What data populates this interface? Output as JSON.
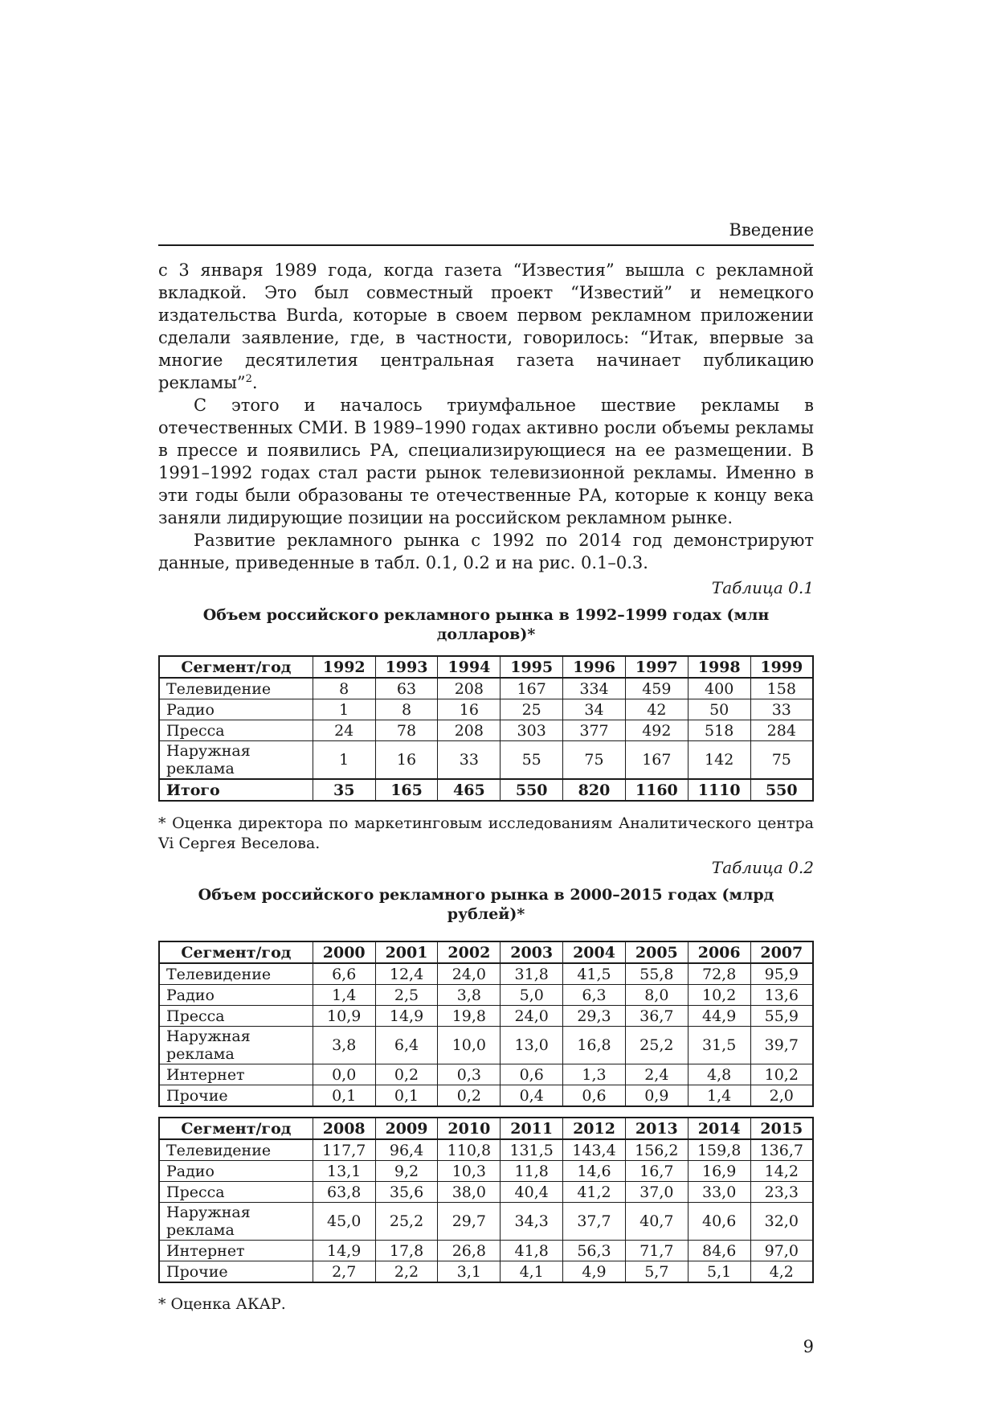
{
  "page": {
    "running_head": "Введение",
    "page_number": "9"
  },
  "paragraphs": {
    "p1_main": "с 3 января 1989 года, когда газета “Известия” вышла с рекламной вкладкой. Это был совместный проект “Известий” и немецкого издательства Burda, которые в своем первом рекламном приложении сделали заявление, где, в частности, говорилось: “Итак, впервые за многие десятилетия центральная газета начинает публикацию рекламы”",
    "p1_footnote_marker": "2",
    "p1_tail": ".",
    "p2": "С этого и началось триумфальное шествие рекламы в отечественных СМИ. В 1989–1990 годах активно росли объемы рекламы в прессе и появились РА, специализирующиеся на ее размещении. В 1991–1992 годах стал расти рынок телевизионной рекламы. Именно в эти годы были образованы те отечественные РА, которые к концу века заняли лидирующие позиции на российском рекламном рынке.",
    "p3": "Развитие рекламного рынка с 1992 по 2014 год демонстрируют данные, приведенные в табл. 0.1, 0.2 и на рис. 0.1–0.3."
  },
  "table1": {
    "caption": "Таблица 0.1",
    "title": "Объем российского рекламного рынка в 1992–1999 годах (млн долларов)*",
    "columns": [
      "Сегмент/год",
      "1992",
      "1993",
      "1994",
      "1995",
      "1996",
      "1997",
      "1998",
      "1999"
    ],
    "rows": [
      {
        "label": "Телевидение",
        "values": [
          "8",
          "63",
          "208",
          "167",
          "334",
          "459",
          "400",
          "158"
        ]
      },
      {
        "label": "Радио",
        "values": [
          "1",
          "8",
          "16",
          "25",
          "34",
          "42",
          "50",
          "33"
        ]
      },
      {
        "label": "Пресса",
        "values": [
          "24",
          "78",
          "208",
          "303",
          "377",
          "492",
          "518",
          "284"
        ]
      },
      {
        "label": "Наружная реклама",
        "values": [
          "1",
          "16",
          "33",
          "55",
          "75",
          "167",
          "142",
          "75"
        ]
      },
      {
        "label": "Итого",
        "values": [
          "35",
          "165",
          "465",
          "550",
          "820",
          "1160",
          "1110",
          "550"
        ],
        "bold": true
      }
    ],
    "footnote": "* Оценка директора по маркетинговым исследованиям Аналитического центра Vi Сергея Веселова."
  },
  "table2": {
    "caption": "Таблица 0.2",
    "title": "Объем российского рекламного рынка в 2000–2015 годах (млрд рублей)*",
    "part1": {
      "columns": [
        "Сегмент/год",
        "2000",
        "2001",
        "2002",
        "2003",
        "2004",
        "2005",
        "2006",
        "2007"
      ],
      "rows": [
        {
          "label": "Телевидение",
          "values": [
            "6,6",
            "12,4",
            "24,0",
            "31,8",
            "41,5",
            "55,8",
            "72,8",
            "95,9"
          ]
        },
        {
          "label": "Радио",
          "values": [
            "1,4",
            "2,5",
            "3,8",
            "5,0",
            "6,3",
            "8,0",
            "10,2",
            "13,6"
          ]
        },
        {
          "label": "Пресса",
          "values": [
            "10,9",
            "14,9",
            "19,8",
            "24,0",
            "29,3",
            "36,7",
            "44,9",
            "55,9"
          ]
        },
        {
          "label": "Наружная реклама",
          "values": [
            "3,8",
            "6,4",
            "10,0",
            "13,0",
            "16,8",
            "25,2",
            "31,5",
            "39,7"
          ]
        },
        {
          "label": "Интернет",
          "values": [
            "0,0",
            "0,2",
            "0,3",
            "0,6",
            "1,3",
            "2,4",
            "4,8",
            "10,2"
          ]
        },
        {
          "label": "Прочие",
          "values": [
            "0,1",
            "0,1",
            "0,2",
            "0,4",
            "0,6",
            "0,9",
            "1,4",
            "2,0"
          ]
        }
      ]
    },
    "part2": {
      "columns": [
        "Сегмент/год",
        "2008",
        "2009",
        "2010",
        "2011",
        "2012",
        "2013",
        "2014",
        "2015"
      ],
      "rows": [
        {
          "label": "Телевидение",
          "values": [
            "117,7",
            "96,4",
            "110,8",
            "131,5",
            "143,4",
            "156,2",
            "159,8",
            "136,7"
          ]
        },
        {
          "label": "Радио",
          "values": [
            "13,1",
            "9,2",
            "10,3",
            "11,8",
            "14,6",
            "16,7",
            "16,9",
            "14,2"
          ]
        },
        {
          "label": "Пресса",
          "values": [
            "63,8",
            "35,6",
            "38,0",
            "40,4",
            "41,2",
            "37,0",
            "33,0",
            "23,3"
          ]
        },
        {
          "label": "Наружная реклама",
          "values": [
            "45,0",
            "25,2",
            "29,7",
            "34,3",
            "37,7",
            "40,7",
            "40,6",
            "32,0"
          ]
        },
        {
          "label": "Интернет",
          "values": [
            "14,9",
            "17,8",
            "26,8",
            "41,8",
            "56,3",
            "71,7",
            "84,6",
            "97,0"
          ]
        },
        {
          "label": "Прочие",
          "values": [
            "2,7",
            "2,2",
            "3,1",
            "4,1",
            "4,9",
            "5,7",
            "5,1",
            "4,2"
          ]
        }
      ]
    },
    "footnote": "* Оценка АКАР."
  }
}
